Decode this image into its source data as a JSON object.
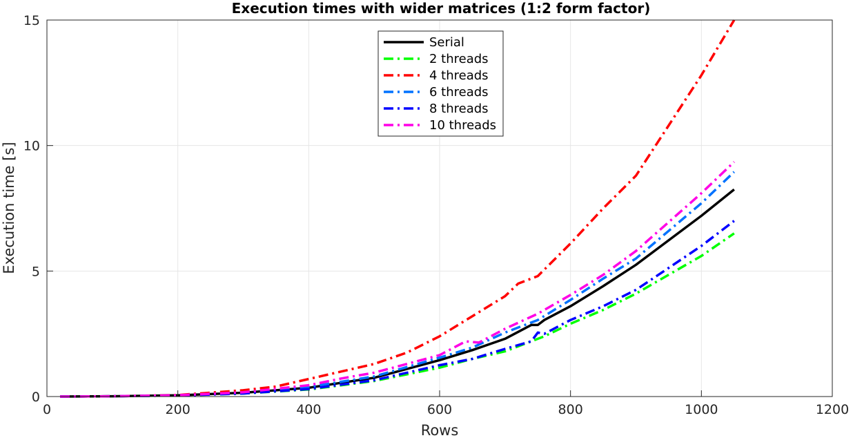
{
  "chart_data": {
    "type": "line",
    "title": "Execution times with wider matrices (1:2 form factor)",
    "xlabel": "Rows",
    "ylabel": "Execution time [s]",
    "xlim": [
      0,
      1200
    ],
    "ylim": [
      0,
      15
    ],
    "xticks": [
      0,
      200,
      400,
      600,
      800,
      1000,
      1200
    ],
    "yticks": [
      0,
      5,
      10,
      15
    ],
    "grid": true,
    "legend_position": "top-center",
    "series": [
      {
        "name": "Serial",
        "color": "#000000",
        "style": "solid",
        "x": [
          20,
          100,
          200,
          300,
          400,
          500,
          600,
          650,
          700,
          740,
          750,
          760,
          800,
          850,
          900,
          1000,
          1050
        ],
        "y": [
          0,
          0.01,
          0.05,
          0.15,
          0.35,
          0.75,
          1.45,
          1.85,
          2.3,
          2.85,
          2.85,
          3.05,
          3.6,
          4.4,
          5.25,
          7.2,
          8.25
        ]
      },
      {
        "name": "2 threads",
        "color": "#00ff00",
        "style": "dashdot",
        "x": [
          20,
          100,
          200,
          300,
          400,
          500,
          600,
          650,
          700,
          740,
          760,
          800,
          850,
          900,
          1000,
          1050
        ],
        "y": [
          0,
          0.01,
          0.04,
          0.12,
          0.28,
          0.62,
          1.15,
          1.5,
          1.8,
          2.2,
          2.4,
          2.9,
          3.45,
          4.1,
          5.6,
          6.5
        ]
      },
      {
        "name": "4 threads",
        "color": "#ff0000",
        "style": "dashdot",
        "x": [
          20,
          100,
          200,
          300,
          350,
          400,
          450,
          500,
          550,
          600,
          650,
          700,
          720,
          750,
          800,
          850,
          900,
          1000,
          1050
        ],
        "y": [
          0,
          0.01,
          0.06,
          0.25,
          0.4,
          0.7,
          1.0,
          1.3,
          1.75,
          2.4,
          3.2,
          4.0,
          4.5,
          4.8,
          6.1,
          7.5,
          8.8,
          12.8,
          15.0
        ]
      },
      {
        "name": "6 threads",
        "color": "#0072ff",
        "style": "dashdot",
        "x": [
          20,
          100,
          200,
          300,
          400,
          500,
          600,
          650,
          700,
          750,
          800,
          850,
          900,
          1000,
          1050
        ],
        "y": [
          0,
          0.01,
          0.05,
          0.15,
          0.38,
          0.8,
          1.55,
          1.95,
          2.55,
          3.05,
          3.85,
          4.7,
          5.5,
          7.7,
          8.95
        ]
      },
      {
        "name": "8 threads",
        "color": "#0000ff",
        "style": "dashdot",
        "x": [
          20,
          100,
          200,
          300,
          400,
          500,
          600,
          650,
          700,
          740,
          750,
          760,
          800,
          850,
          900,
          1000,
          1050
        ],
        "y": [
          0,
          0.01,
          0.04,
          0.12,
          0.3,
          0.65,
          1.25,
          1.5,
          1.9,
          2.2,
          2.55,
          2.5,
          3.05,
          3.6,
          4.25,
          6.0,
          7.0
        ]
      },
      {
        "name": "10 threads",
        "color": "#ff00e6",
        "style": "dashdot",
        "x": [
          20,
          100,
          200,
          300,
          400,
          450,
          500,
          550,
          600,
          640,
          660,
          700,
          750,
          800,
          850,
          900,
          1000,
          1050
        ],
        "y": [
          0,
          0.01,
          0.05,
          0.17,
          0.45,
          0.72,
          0.95,
          1.3,
          1.65,
          2.2,
          2.15,
          2.7,
          3.3,
          4.05,
          4.85,
          5.8,
          8.1,
          9.35
        ]
      }
    ]
  }
}
